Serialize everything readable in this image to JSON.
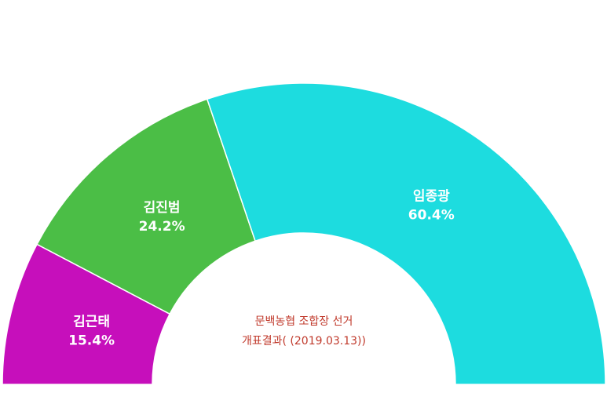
{
  "chart_data": {
    "type": "pie",
    "variant": "semi-donut",
    "center_title": [
      "문백농협 조합장 선거",
      "개표결과( (2019.03.13))"
    ],
    "slices": [
      {
        "name": "김근태",
        "value": 15.4,
        "label": "15.4%",
        "color": "#c60fbb"
      },
      {
        "name": "김진범",
        "value": 24.2,
        "label": "24.2%",
        "color": "#4bbe46"
      },
      {
        "name": "임종광",
        "value": 60.4,
        "label": "60.4%",
        "color": "#1ddcdf"
      }
    ]
  }
}
